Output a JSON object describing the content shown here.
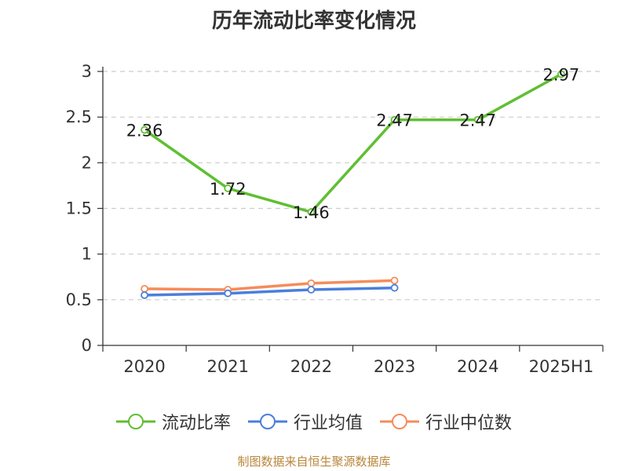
{
  "title": "历年流动比率变化情况",
  "source": "制图数据来自恒生聚源数据库",
  "chart_data": {
    "type": "line",
    "categories": [
      "2020",
      "2021",
      "2022",
      "2023",
      "2024",
      "2025H1"
    ],
    "y_ticks": [
      "0",
      "0.5",
      "1",
      "1.5",
      "2",
      "2.5",
      "3"
    ],
    "ylim": [
      0,
      3
    ],
    "grid": true,
    "legend_position": "bottom",
    "series": [
      {
        "name": "流动比率",
        "color": "#5fbf32",
        "values": [
          2.36,
          1.72,
          1.46,
          2.47,
          2.47,
          2.97
        ],
        "labels": [
          "2.36",
          "1.72",
          "1.46",
          "2.47",
          "2.47",
          "2.97"
        ],
        "show_labels": true
      },
      {
        "name": "行业均值",
        "color": "#4a7fdc",
        "values": [
          0.55,
          0.57,
          0.61,
          0.63,
          null,
          null
        ],
        "show_labels": false
      },
      {
        "name": "行业中位数",
        "color": "#f58c5a",
        "values": [
          0.62,
          0.61,
          0.68,
          0.71,
          null,
          null
        ],
        "show_labels": false
      }
    ]
  }
}
